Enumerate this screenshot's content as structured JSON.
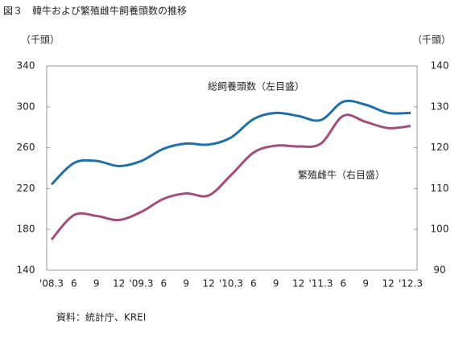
{
  "chart_data": {
    "type": "line",
    "title": "図３　韓牛および繁殖雌牛飼養頭数の推移",
    "y_label": "（千頭）",
    "y2_label": "（千頭）",
    "source": "資料：統計庁、KREI",
    "categories": [
      "'08.3",
      "6",
      "9",
      "12",
      "'09.3",
      "6",
      "9",
      "12",
      "'10.3",
      "6",
      "9",
      "12",
      "'11.3",
      "6",
      "9",
      "12",
      "'12.3"
    ],
    "series": [
      {
        "name": "総飼養頭数（左目盛）",
        "color": "#1f6fa8",
        "values": [
          224,
          245,
          247,
          242,
          247,
          259,
          264,
          263,
          270,
          288,
          294,
          291,
          287,
          305,
          302,
          294,
          294
        ]
      },
      {
        "name": "繁殖雌牛（右目盛）",
        "color": "#a34d7c",
        "axis": "y2",
        "values": [
          97.5,
          103.5,
          103.3,
          102.3,
          104.3,
          107.5,
          108.8,
          108.3,
          113.3,
          118.8,
          120.5,
          120.3,
          121,
          127.8,
          126.3,
          124.8,
          125.3
        ]
      }
    ],
    "ylim": [
      140,
      340
    ],
    "yticks": [
      140,
      180,
      220,
      260,
      300,
      340
    ],
    "y2lim": [
      90,
      140
    ],
    "y2ticks": [
      90,
      100,
      110,
      120,
      130,
      140
    ]
  }
}
